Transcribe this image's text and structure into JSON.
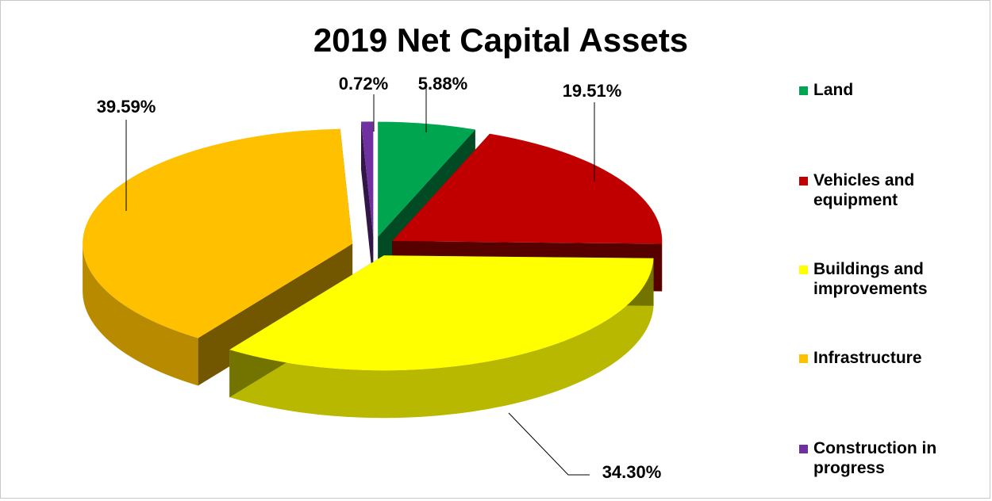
{
  "chart_data": {
    "type": "pie",
    "title": "2019 Net Capital Assets",
    "categories": [
      "Land",
      "Vehicles and equipment",
      "Buildings and improvements",
      "Infrastructure",
      "Construction in progress"
    ],
    "values": [
      5.88,
      19.51,
      34.3,
      39.59,
      0.72
    ],
    "value_labels": [
      "5.88%",
      "19.51%",
      "34.30%",
      "39.59%",
      "0.72%"
    ],
    "colors": [
      "#00a550",
      "#c00000",
      "#ffff00",
      "#ffc000",
      "#7030a0"
    ],
    "style": "3d-exploded",
    "legend": "right"
  }
}
